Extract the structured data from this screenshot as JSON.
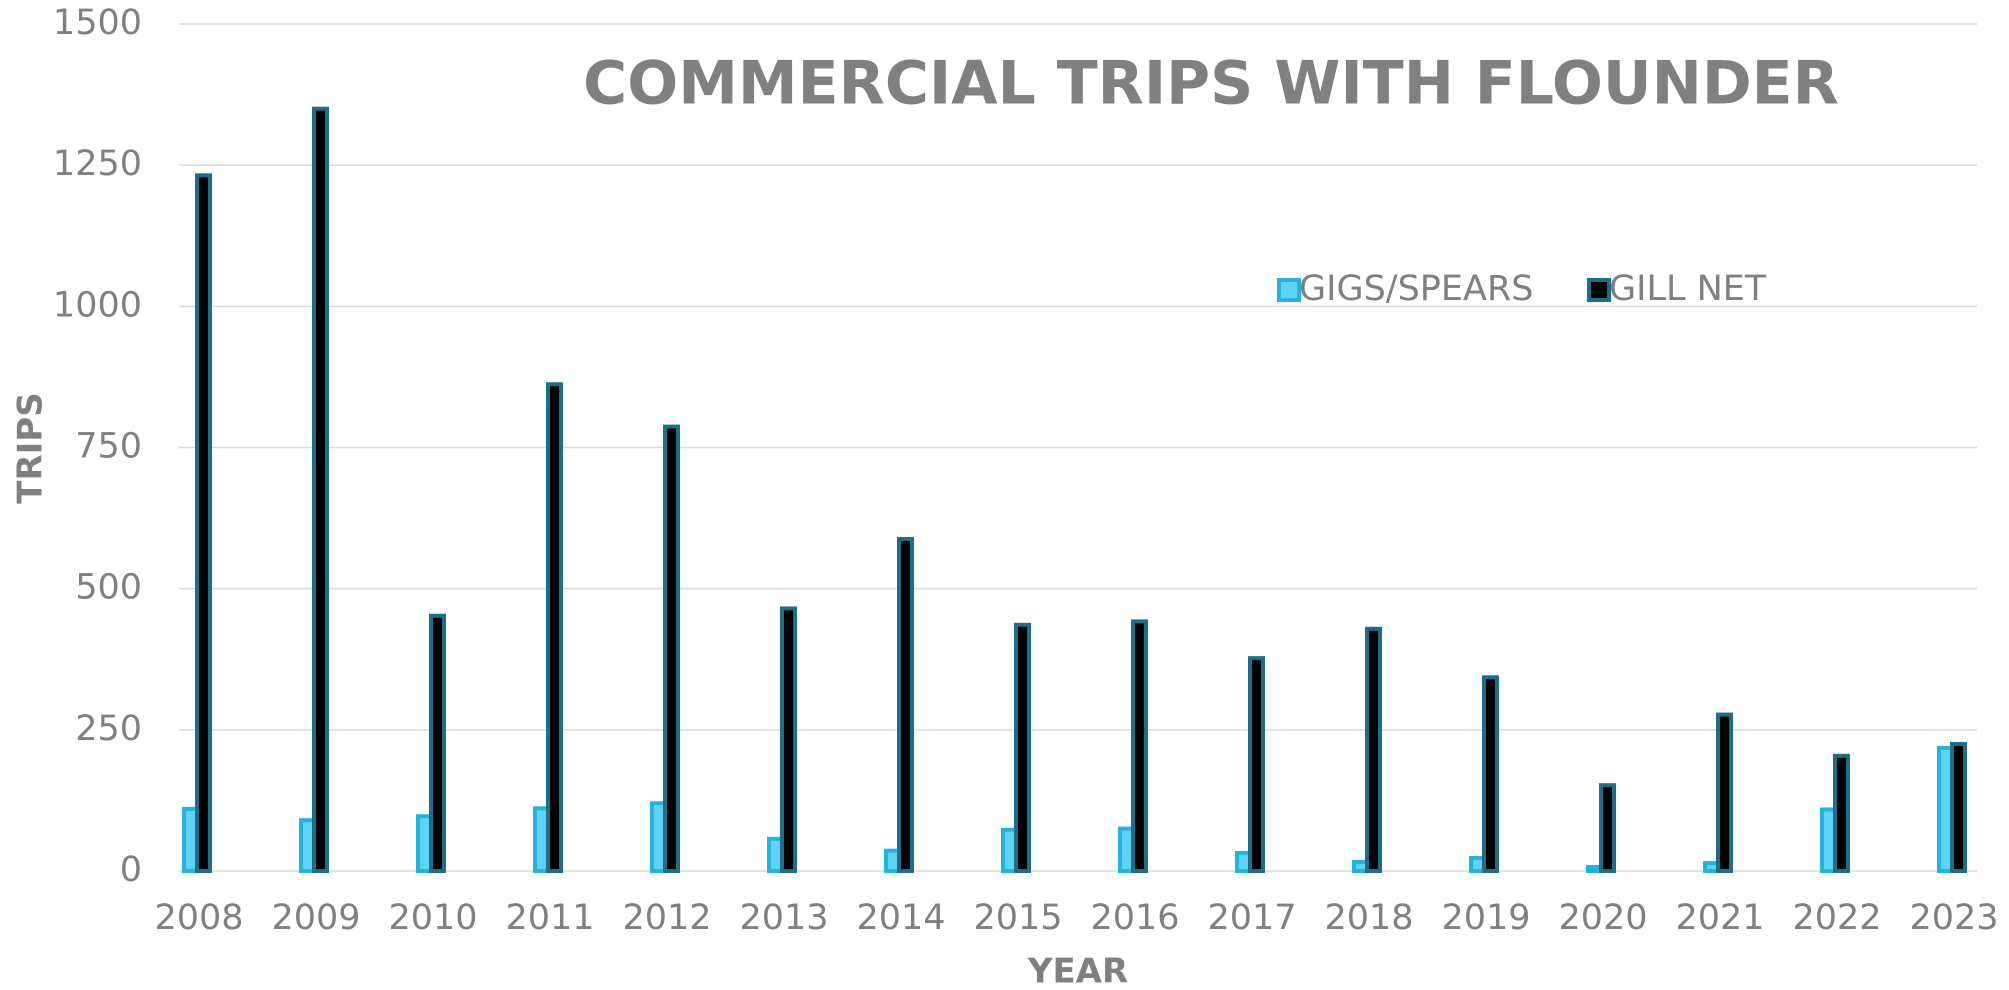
{
  "chart_data": {
    "type": "bar",
    "title": "COMMERCIAL TRIPS WITH FLOUNDER",
    "x_label": "YEAR",
    "y_label": "TRIPS",
    "categories": [
      "2008",
      "2009",
      "2010",
      "2011",
      "2012",
      "2013",
      "2014",
      "2015",
      "2016",
      "2017",
      "2018",
      "2019",
      "2020",
      "2021",
      "2022",
      "2023"
    ],
    "series": [
      {
        "name": "GIGS/SPEARS",
        "color": "#5fd3f3",
        "edge_color": "#22b4e0",
        "values": [
          110,
          90,
          97,
          111,
          120,
          57,
          36,
          73,
          75,
          32,
          16,
          23,
          7,
          14,
          109,
          218
        ]
      },
      {
        "name": "GILL NET",
        "color": "#000000",
        "edge_color": "#1b6f8c",
        "values": [
          1232,
          1350,
          452,
          862,
          787,
          465,
          588,
          436,
          442,
          377,
          429,
          343,
          152,
          277,
          204,
          225
        ]
      }
    ],
    "ylim": [
      0,
      1500
    ],
    "yticks": [
      0,
      250,
      500,
      750,
      1000,
      1250,
      1500
    ],
    "grid": true,
    "legend": "top-right"
  }
}
